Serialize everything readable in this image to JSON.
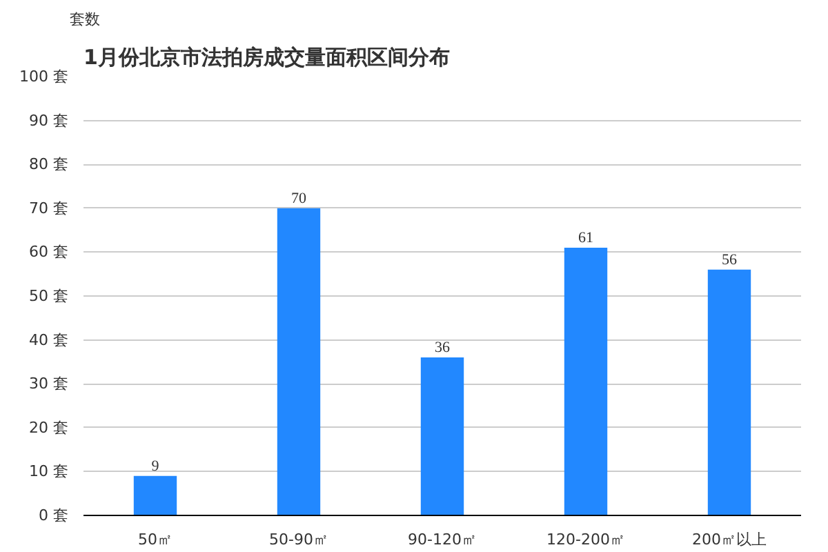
{
  "chart_data": {
    "type": "bar",
    "title": "1月份北京市法拍房成交量面积区间分布",
    "ylabel": "套数",
    "categories": [
      "50㎡",
      "50-90㎡",
      "90-120㎡",
      "120-200㎡",
      "200㎡以上"
    ],
    "values": [
      9,
      70,
      36,
      61,
      56
    ],
    "color": "#2288ff",
    "ylim": [
      0,
      100
    ],
    "yticks": [
      {
        "value": 0,
        "label": "0 套"
      },
      {
        "value": 10,
        "label": "10 套"
      },
      {
        "value": 20,
        "label": "20 套"
      },
      {
        "value": 30,
        "label": "30 套"
      },
      {
        "value": 40,
        "label": "40 套"
      },
      {
        "value": 50,
        "label": "50 套"
      },
      {
        "value": 60,
        "label": "60 套"
      },
      {
        "value": 70,
        "label": "70 套"
      },
      {
        "value": 80,
        "label": "80 套"
      },
      {
        "value": 90,
        "label": "90 套"
      },
      {
        "value": 100,
        "label": "100 套"
      }
    ],
    "grid": "y",
    "data_labels": true
  }
}
